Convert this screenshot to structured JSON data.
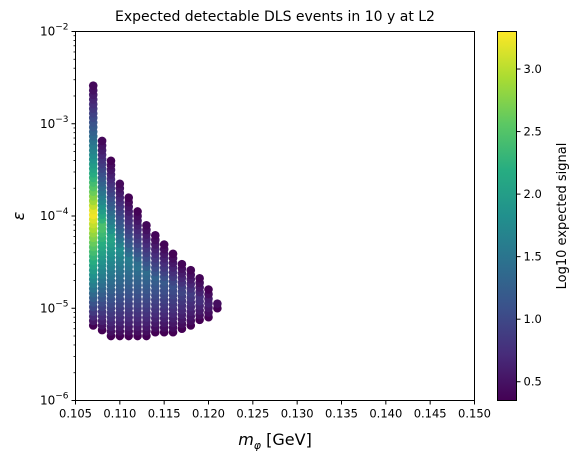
{
  "chart_data": {
    "type": "scatter",
    "title": "Expected detectable DLS events in 10 y at L2",
    "xlabel_main": "m",
    "xlabel_sub": "φ",
    "xlabel_unit": " [GeV]",
    "ylabel": "ε",
    "xlim": [
      0.105,
      0.15
    ],
    "ylim": [
      1e-06,
      0.01
    ],
    "yscale": "log",
    "grid": false,
    "x_ticks": [
      "0.105",
      "0.110",
      "0.115",
      "0.120",
      "0.125",
      "0.130",
      "0.135",
      "0.140",
      "0.145",
      "0.150"
    ],
    "y_ticks": [
      {
        "base": "10",
        "exp": "−6",
        "value": 1e-06
      },
      {
        "base": "10",
        "exp": "−5",
        "value": 1e-05
      },
      {
        "base": "10",
        "exp": "−4",
        "value": 0.0001
      },
      {
        "base": "10",
        "exp": "−3",
        "value": 0.001
      },
      {
        "base": "10",
        "exp": "−2",
        "value": 0.01
      }
    ],
    "colorbar": {
      "label": "Log10 expected signal",
      "range": [
        0.35,
        3.3
      ],
      "ticks": [
        "0.5",
        "1.0",
        "1.5",
        "2.0",
        "2.5",
        "3.0"
      ],
      "colormap": "viridis"
    },
    "columns": [
      {
        "x": 0.107,
        "ymin": 6.5e-06,
        "ymax": 0.0028,
        "cpeak": 3.3,
        "peak_y": 0.00011
      },
      {
        "x": 0.108,
        "ymin": 5.8e-06,
        "ymax": 0.0007,
        "cpeak": 2.5,
        "peak_y": 8e-05
      },
      {
        "x": 0.109,
        "ymin": 5e-06,
        "ymax": 0.0004,
        "cpeak": 2.1,
        "peak_y": 6e-05
      },
      {
        "x": 0.11,
        "ymin": 5e-06,
        "ymax": 0.00025,
        "cpeak": 1.8,
        "peak_y": 4.5e-05
      },
      {
        "x": 0.111,
        "ymin": 5e-06,
        "ymax": 0.00016,
        "cpeak": 1.6,
        "peak_y": 3.5e-05
      },
      {
        "x": 0.112,
        "ymin": 5e-06,
        "ymax": 0.000115,
        "cpeak": 1.5,
        "peak_y": 3e-05
      },
      {
        "x": 0.113,
        "ymin": 5e-06,
        "ymax": 8.5e-05,
        "cpeak": 1.4,
        "peak_y": 2.5e-05
      },
      {
        "x": 0.114,
        "ymin": 5.5e-06,
        "ymax": 6.5e-05,
        "cpeak": 1.3,
        "peak_y": 2.2e-05
      },
      {
        "x": 0.115,
        "ymin": 5.5e-06,
        "ymax": 5e-05,
        "cpeak": 1.2,
        "peak_y": 2e-05
      },
      {
        "x": 0.116,
        "ymin": 5.5e-06,
        "ymax": 4e-05,
        "cpeak": 1.1,
        "peak_y": 1.8e-05
      },
      {
        "x": 0.117,
        "ymin": 6e-06,
        "ymax": 3.2e-05,
        "cpeak": 1.0,
        "peak_y": 1.6e-05
      },
      {
        "x": 0.118,
        "ymin": 6.5e-06,
        "ymax": 2.7e-05,
        "cpeak": 0.9,
        "peak_y": 1.5e-05
      },
      {
        "x": 0.119,
        "ymin": 7.5e-06,
        "ymax": 2.2e-05,
        "cpeak": 0.8,
        "peak_y": 1.3e-05
      },
      {
        "x": 0.12,
        "ymin": 8e-06,
        "ymax": 1.6e-05,
        "cpeak": 0.65,
        "peak_y": 1.2e-05
      },
      {
        "x": 0.121,
        "ymin": 1e-05,
        "ymax": 1.2e-05,
        "cpeak": 0.5,
        "peak_y": 1.1e-05
      }
    ],
    "y_step_decades": 0.05
  }
}
